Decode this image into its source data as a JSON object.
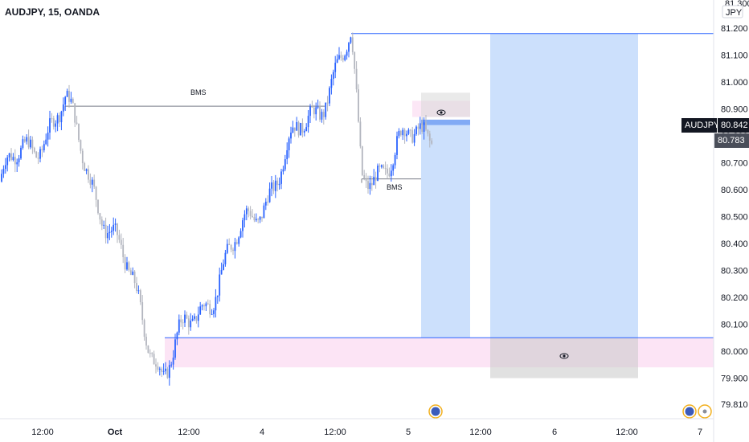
{
  "header": {
    "title": "AUDJPY, 15, OANDA"
  },
  "colors": {
    "up": "#2962ff",
    "down": "#b2b5be",
    "zone_blue": "#bbd5fb",
    "zone_pink": "#fce4f5",
    "line_blue": "#2962ff",
    "tag_dark": "#131722",
    "tag_gray": "#4a4e59"
  },
  "price_axis": {
    "currency": "JPY",
    "top_label": "81.300",
    "ticks": [
      "81.200",
      "81.100",
      "81.000",
      "80.900",
      "80.800",
      "80.700",
      "80.600",
      "80.500",
      "80.400",
      "80.300",
      "80.200",
      "80.100",
      "80.000",
      "79.900",
      "79.810"
    ]
  },
  "time_axis": {
    "ticks": [
      "12:00",
      "Oct",
      "12:00",
      "4",
      "12:00",
      "5",
      "12:00",
      "6",
      "12:00",
      "7"
    ]
  },
  "tags": {
    "symbol": "AUDJPY",
    "last_price": "80.842",
    "secondary_price": "80.783",
    "hidden_price": "80.800"
  },
  "annotations": {
    "bms_left": "BMS",
    "bms_right": "BMS"
  },
  "chart_data": {
    "type": "candlestick",
    "title": "AUDJPY, 15, OANDA",
    "y_unit": "JPY",
    "ylim": [
      79.81,
      81.3
    ],
    "x_ticks": [
      "12:00",
      "Oct",
      "12:00",
      "4",
      "12:00",
      "5",
      "12:00",
      "6",
      "12:00",
      "7"
    ],
    "last_price": 80.842,
    "secondary_price": 80.783,
    "key_points": [
      {
        "label": "start",
        "value": 80.63
      },
      {
        "label": "swing high (BMS level)",
        "value": 80.91
      },
      {
        "label": "low near Oct",
        "value": 79.92
      },
      {
        "label": "high",
        "value": 81.14
      },
      {
        "label": "pullback low (BMS level)",
        "value": 80.64
      },
      {
        "label": "last",
        "value": 80.842
      }
    ],
    "levels": [
      {
        "name": "BMS",
        "value": 80.91
      },
      {
        "name": "BMS",
        "value": 80.64
      },
      {
        "name": "upper line",
        "value": 81.18
      },
      {
        "name": "lower line",
        "value": 80.05
      }
    ],
    "zones": [
      {
        "name": "pink supply zone",
        "from": 80.87,
        "to": 80.93
      },
      {
        "name": "pink demand zone",
        "from": 79.94,
        "to": 80.05
      },
      {
        "name": "blue long position (near)",
        "from": 80.05,
        "to": 80.86
      },
      {
        "name": "blue long position (far)",
        "from": 80.05,
        "to": 81.18
      }
    ]
  }
}
